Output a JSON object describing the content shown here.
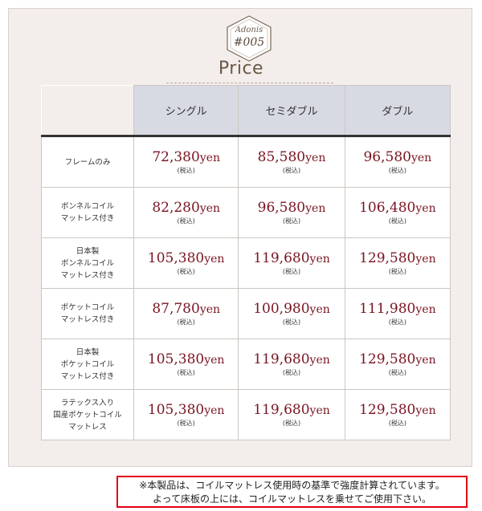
{
  "badge": {
    "brand": "Adonis",
    "code": "#005"
  },
  "title": "Price",
  "columns": [
    "シングル",
    "セミダブル",
    "ダブル"
  ],
  "tax_label": "(税込)",
  "unit": "yen",
  "rows": [
    {
      "label": [
        "フレームのみ"
      ],
      "prices": [
        "72,380",
        "85,580",
        "96,580"
      ]
    },
    {
      "label": [
        "ボンネルコイル",
        "マットレス付き"
      ],
      "prices": [
        "82,280",
        "96,580",
        "106,480"
      ]
    },
    {
      "label": [
        "日本製",
        "ボンネルコイル",
        "マットレス付き"
      ],
      "prices": [
        "105,380",
        "119,680",
        "129,580"
      ]
    },
    {
      "label": [
        "ポケットコイル",
        "マットレス付き"
      ],
      "prices": [
        "87,780",
        "100,980",
        "111,980"
      ]
    },
    {
      "label": [
        "日本製",
        "ポケットコイル",
        "マットレス付き"
      ],
      "prices": [
        "105,380",
        "119,680",
        "129,580"
      ]
    },
    {
      "label": [
        "ラテックス入り",
        "国産ポケットコイル",
        "マットレス"
      ],
      "prices": [
        "105,380",
        "119,680",
        "129,580"
      ]
    }
  ],
  "notice": [
    "※本製品は、コイルマットレス使用時の基準で強度計算されています。",
    "よって床板の上には、コイルマットレスを乗せてご使用下さい。"
  ],
  "colors": {
    "price_text": "#7a1420",
    "header_bg": "#d7dae3",
    "card_bg": "#f3eeeb",
    "notice_border": "#e30012"
  }
}
